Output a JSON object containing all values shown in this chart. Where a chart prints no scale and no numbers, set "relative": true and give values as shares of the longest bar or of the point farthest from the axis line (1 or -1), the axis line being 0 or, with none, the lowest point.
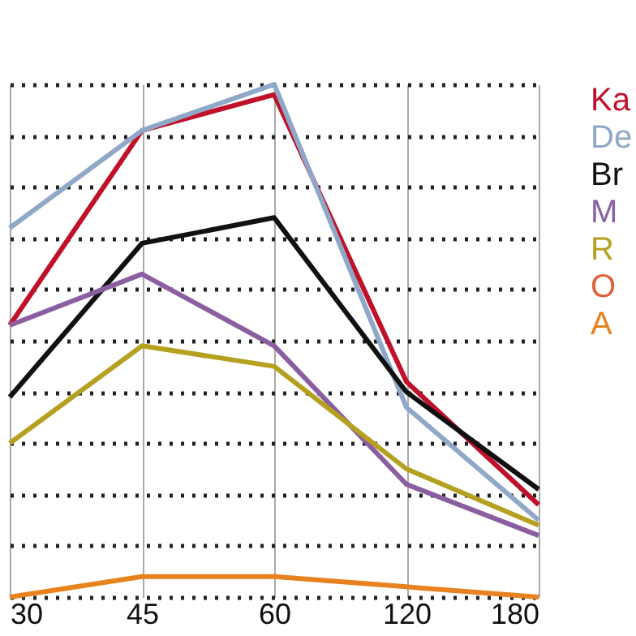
{
  "chart_data": {
    "type": "line",
    "relative": true,
    "categories": [
      "30",
      "45",
      "60",
      "120",
      "180"
    ],
    "series": [
      {
        "name": "Ka",
        "color": "#c0102a",
        "values": [
          0.53,
          0.91,
          0.98,
          0.42,
          0.18
        ]
      },
      {
        "name": "De",
        "color": "#8fa8c8",
        "values": [
          0.72,
          0.91,
          1,
          0.37,
          0.15
        ]
      },
      {
        "name": "Br",
        "color": "#111111",
        "values": [
          0.39,
          0.69,
          0.74,
          0.4,
          0.21
        ]
      },
      {
        "name": "M",
        "color": "#8a5ea0",
        "values": [
          0.53,
          0.63,
          0.49,
          0.22,
          0.12
        ]
      },
      {
        "name": "R",
        "color": "#b5a020",
        "values": [
          0.3,
          0.49,
          0.45,
          0.25,
          0.14
        ]
      },
      {
        "name": "O",
        "color": "#e0603a",
        "values": [
          null,
          null,
          null,
          null,
          null
        ]
      },
      {
        "name": "A",
        "color": "#e8821e",
        "values": [
          0,
          0.04,
          0.04,
          0.02,
          0
        ]
      }
    ],
    "grid": true,
    "legend": "right",
    "marker": "none",
    "line_style": "solid"
  }
}
